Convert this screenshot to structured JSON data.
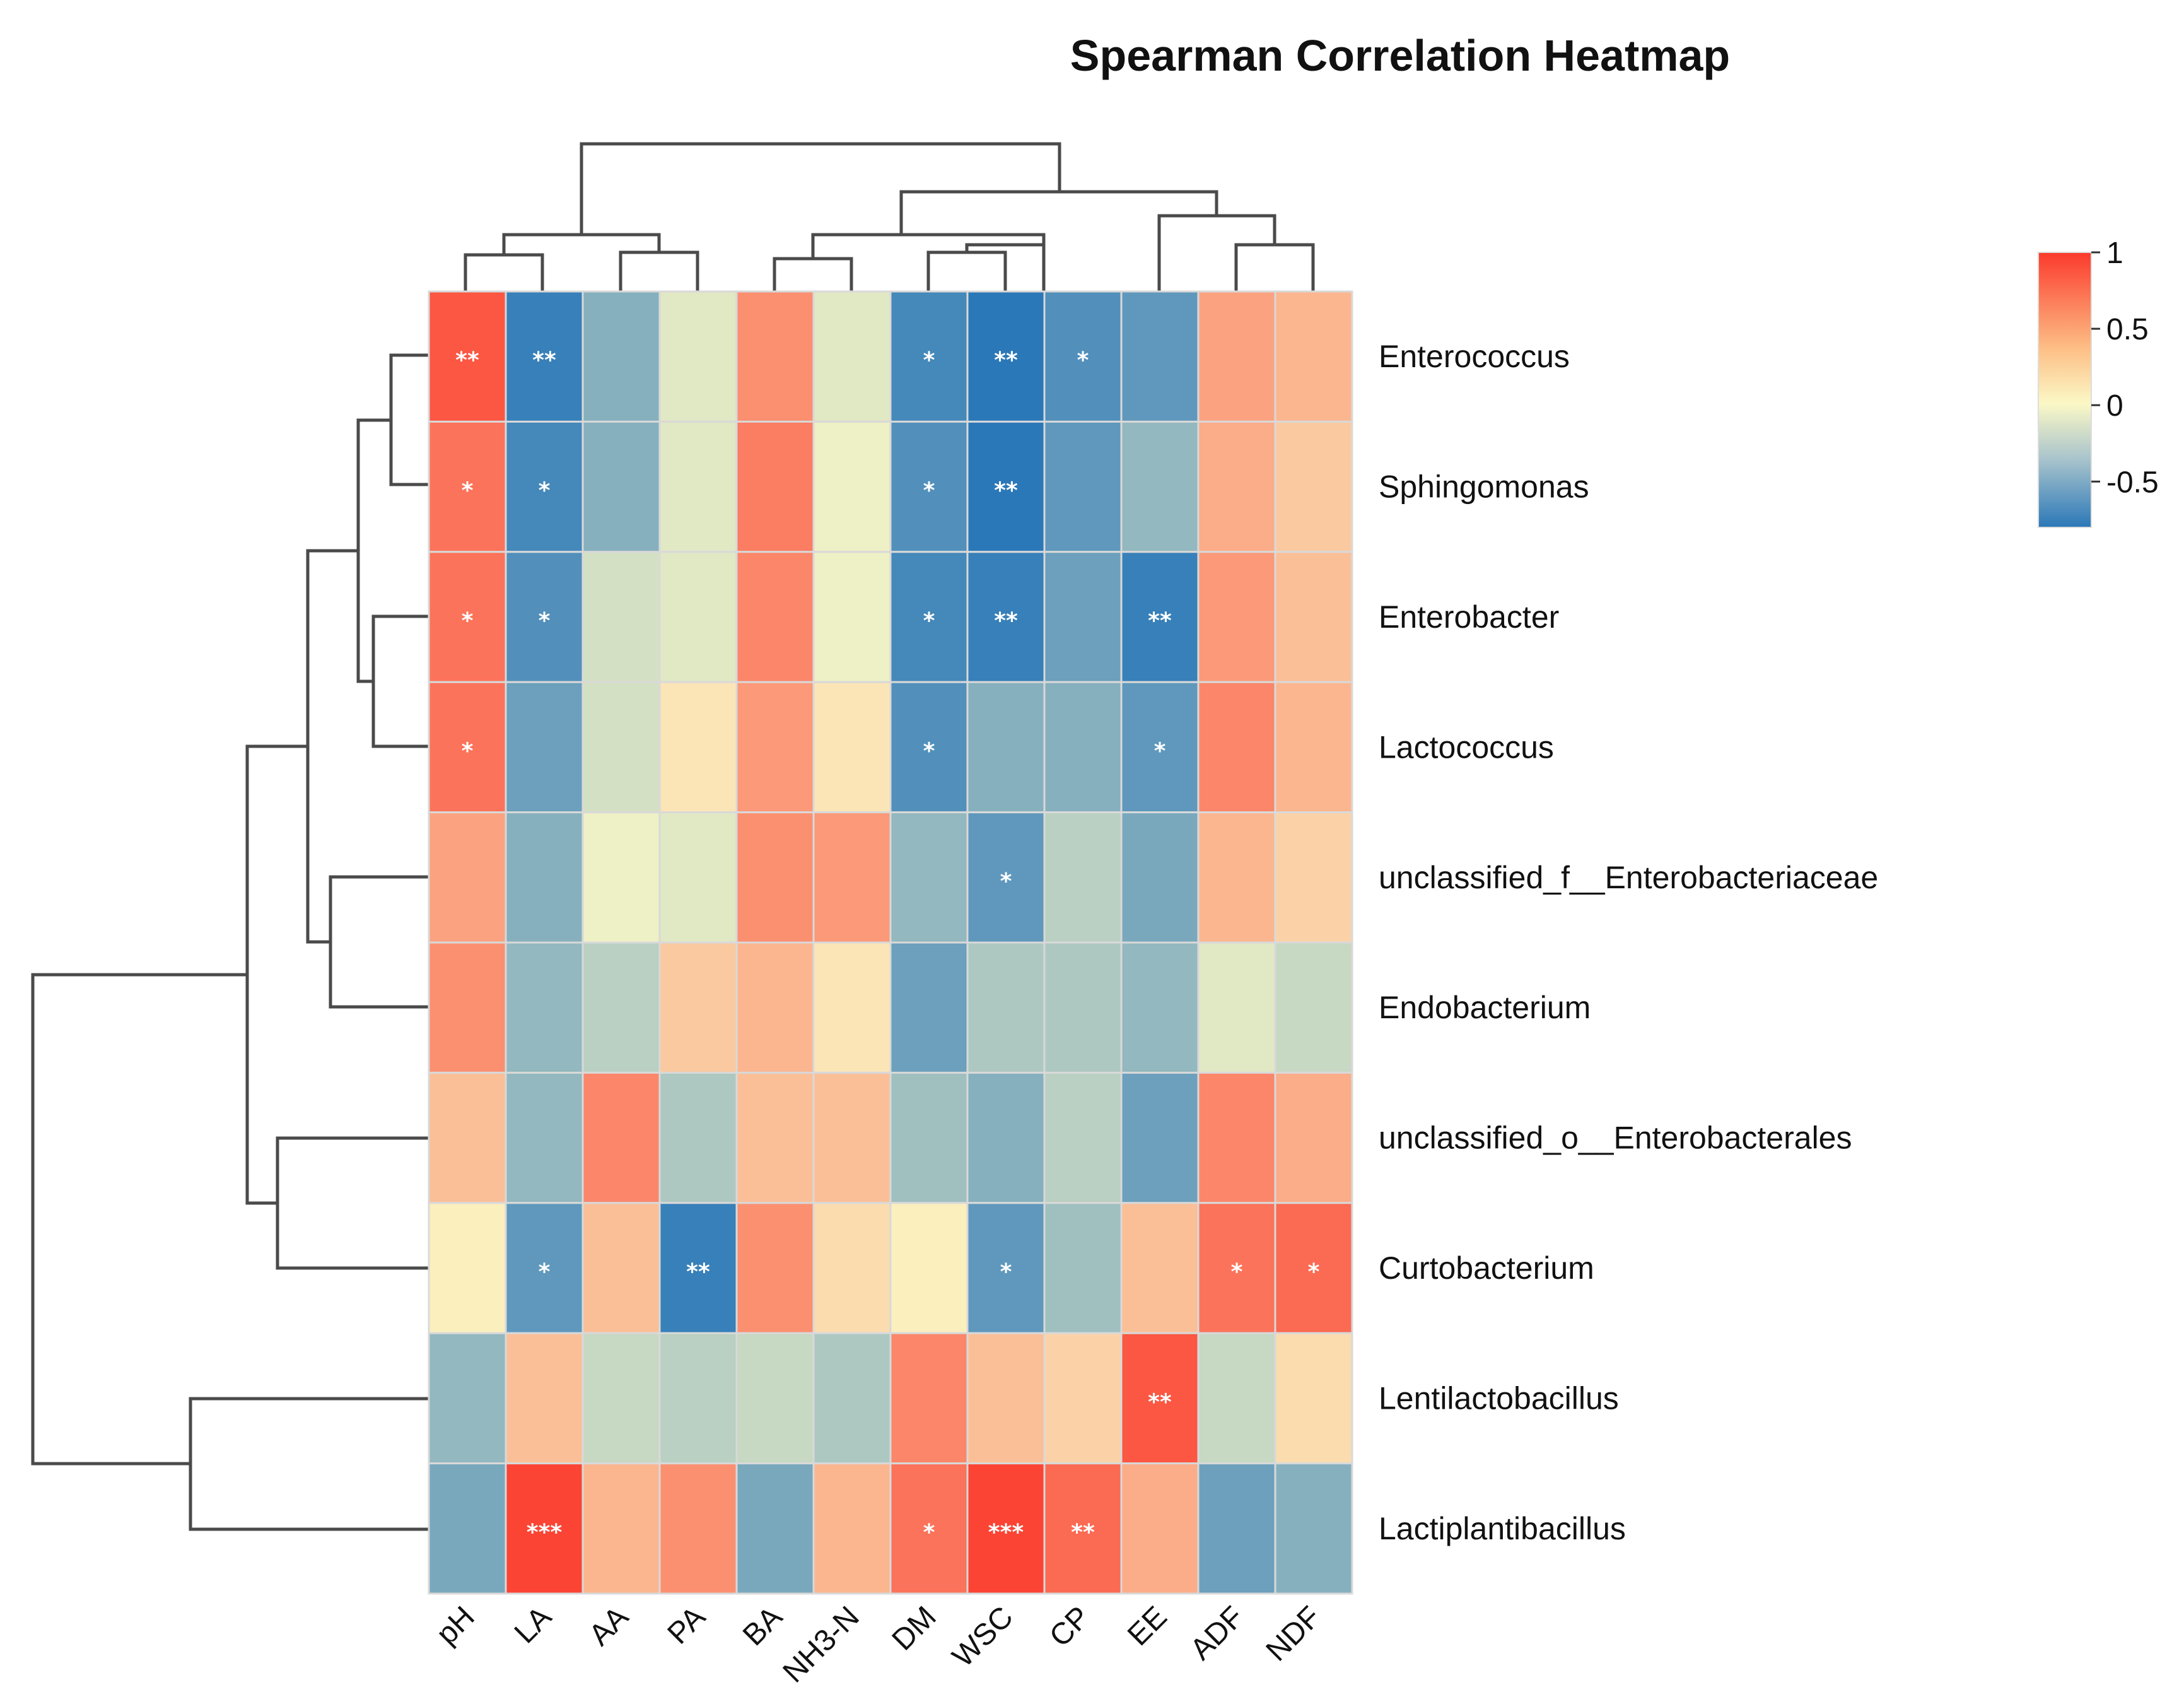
{
  "chart_data": {
    "type": "heatmap",
    "title": "Spearman Correlation Heatmap",
    "columns": [
      "pH",
      "LA",
      "AA",
      "PA",
      "BA",
      "NH3-N",
      "DM",
      "WSC",
      "CP",
      "EE",
      "ADF",
      "NDF"
    ],
    "rows": [
      "Enterococcus",
      "Sphingomonas",
      "Enterobacter",
      "Lactococcus",
      "unclassified_f__Enterobacteriaceae",
      "Endobacterium",
      "unclassified_o__Enterobacterales",
      "Curtobacterium",
      "Lentilactobacillus",
      "Lactiplantibacillus"
    ],
    "values": [
      [
        0.85,
        -0.75,
        -0.45,
        -0.1,
        0.55,
        -0.1,
        -0.7,
        -0.85,
        -0.65,
        -0.6,
        0.45,
        0.35
      ],
      [
        0.7,
        -0.7,
        -0.45,
        -0.1,
        0.65,
        -0.05,
        -0.65,
        -0.85,
        -0.6,
        -0.4,
        0.4,
        0.25
      ],
      [
        0.7,
        -0.65,
        -0.15,
        -0.1,
        0.6,
        -0.05,
        -0.7,
        -0.75,
        -0.55,
        -0.75,
        0.5,
        0.3
      ],
      [
        0.7,
        -0.55,
        -0.15,
        0.1,
        0.5,
        0.1,
        -0.65,
        -0.45,
        -0.45,
        -0.6,
        0.6,
        0.35
      ],
      [
        0.45,
        -0.45,
        -0.05,
        -0.1,
        0.55,
        0.5,
        -0.4,
        -0.6,
        -0.25,
        -0.5,
        0.35,
        0.2
      ],
      [
        0.55,
        -0.4,
        -0.25,
        0.25,
        0.35,
        0.1,
        -0.55,
        -0.3,
        -0.3,
        -0.4,
        -0.1,
        -0.2
      ],
      [
        0.3,
        -0.4,
        0.6,
        -0.3,
        0.3,
        0.3,
        -0.35,
        -0.45,
        -0.25,
        -0.55,
        0.6,
        0.4
      ],
      [
        0.05,
        -0.6,
        0.3,
        -0.75,
        0.55,
        0.15,
        0.05,
        -0.6,
        -0.35,
        0.3,
        0.7,
        0.75
      ],
      [
        -0.4,
        0.3,
        -0.2,
        -0.25,
        -0.2,
        -0.3,
        0.6,
        0.3,
        0.2,
        0.85,
        -0.2,
        0.15
      ],
      [
        -0.5,
        0.95,
        0.35,
        0.55,
        -0.5,
        0.35,
        0.7,
        0.95,
        0.75,
        0.4,
        -0.55,
        -0.45
      ]
    ],
    "significance": [
      [
        "**",
        "**",
        "",
        "",
        "",
        "",
        "*",
        "**",
        "*",
        "",
        "",
        ""
      ],
      [
        "*",
        "*",
        "",
        "",
        "",
        "",
        "*",
        "**",
        "",
        "",
        "",
        ""
      ],
      [
        "*",
        "*",
        "",
        "",
        "",
        "",
        "*",
        "**",
        "",
        "**",
        "",
        ""
      ],
      [
        "*",
        "",
        "",
        "",
        "",
        "",
        "*",
        "",
        "",
        "*",
        "",
        ""
      ],
      [
        "",
        "",
        "",
        "",
        "",
        "",
        "",
        "*",
        "",
        "",
        "",
        ""
      ],
      [
        "",
        "",
        "",
        "",
        "",
        "",
        "",
        "",
        "",
        "",
        "",
        ""
      ],
      [
        "",
        "",
        "",
        "",
        "",
        "",
        "",
        "",
        "",
        "",
        "",
        ""
      ],
      [
        "",
        "*",
        "",
        "**",
        "",
        "",
        "",
        "*",
        "",
        "",
        "*",
        "*"
      ],
      [
        "",
        "",
        "",
        "",
        "",
        "",
        "",
        "",
        "",
        "**",
        "",
        ""
      ],
      [
        "",
        "***",
        "",
        "",
        "",
        "",
        "*",
        "***",
        "**",
        "",
        "",
        ""
      ]
    ],
    "color_scale": {
      "stops": [
        {
          "value": -0.8,
          "color": "#2b78b8"
        },
        {
          "value": 0,
          "color": "#fbf8c6"
        },
        {
          "value": 1,
          "color": "#fb3a2c"
        }
      ],
      "ticks": [
        "1",
        "0.5",
        "0",
        "-0.5"
      ]
    },
    "row_dendrogram": true,
    "column_dendrogram": true,
    "legend_position": "top-right"
  }
}
